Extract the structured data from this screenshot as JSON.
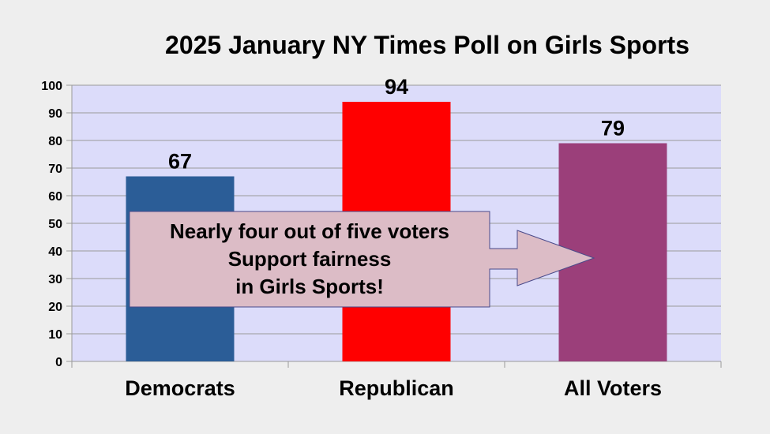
{
  "chart_data": {
    "type": "bar",
    "title": "2025 January  NY Times Poll on Girls Sports",
    "categories": [
      "Democrats",
      "Republican",
      "All Voters"
    ],
    "values": [
      67,
      94,
      79
    ],
    "bar_colors": [
      "#2b5d97",
      "#ff0000",
      "#9b3f7a"
    ],
    "ylim": [
      0,
      100
    ],
    "yticks": [
      0,
      10,
      20,
      30,
      40,
      50,
      60,
      70,
      80,
      90,
      100
    ],
    "grid": true,
    "plot_background": "#dcdcfa",
    "data_labels": [
      "67",
      "94",
      "79"
    ]
  },
  "callout": {
    "lines": [
      "Nearly four out of five voters",
      "Support fairness",
      "in Girls Sports!"
    ],
    "fill": "#dcbcc6"
  }
}
